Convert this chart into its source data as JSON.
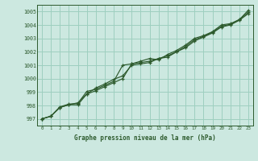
{
  "title": "Graphe pression niveau de la mer (hPa)",
  "background_color": "#cce8e0",
  "grid_color": "#9ecfbf",
  "line_color": "#2d5a2d",
  "marker_color": "#2d5a2d",
  "xlim": [
    -0.5,
    23.5
  ],
  "ylim": [
    996.5,
    1005.5
  ],
  "yticks": [
    997,
    998,
    999,
    1000,
    1001,
    1002,
    1003,
    1004,
    1005
  ],
  "xticks": [
    0,
    1,
    2,
    3,
    4,
    5,
    6,
    7,
    8,
    9,
    10,
    11,
    12,
    13,
    14,
    15,
    16,
    17,
    18,
    19,
    20,
    21,
    22,
    23
  ],
  "series": [
    [
      997.0,
      997.2,
      997.9,
      998.1,
      998.15,
      999.05,
      999.2,
      999.5,
      999.8,
      1001.0,
      1001.1,
      1001.3,
      1001.5,
      1001.4,
      1001.8,
      1002.1,
      1002.5,
      1003.0,
      1003.2,
      1003.5,
      1004.0,
      1004.1,
      1004.4,
      1005.1
    ],
    [
      997.0,
      997.2,
      997.85,
      998.05,
      998.05,
      998.85,
      999.3,
      999.6,
      999.95,
      1000.2,
      1001.0,
      1001.1,
      1001.2,
      1001.5,
      1001.6,
      1002.0,
      1002.3,
      1002.8,
      1003.1,
      1003.4,
      1003.85,
      1004.0,
      1004.35,
      1004.85
    ],
    [
      997.0,
      997.2,
      997.85,
      998.05,
      998.2,
      998.85,
      999.1,
      999.4,
      999.7,
      1000.0,
      1001.1,
      1001.2,
      1001.3,
      1001.5,
      1001.7,
      1002.0,
      1002.4,
      1002.9,
      1003.15,
      1003.45,
      1003.9,
      1004.05,
      1004.4,
      1004.95
    ]
  ]
}
